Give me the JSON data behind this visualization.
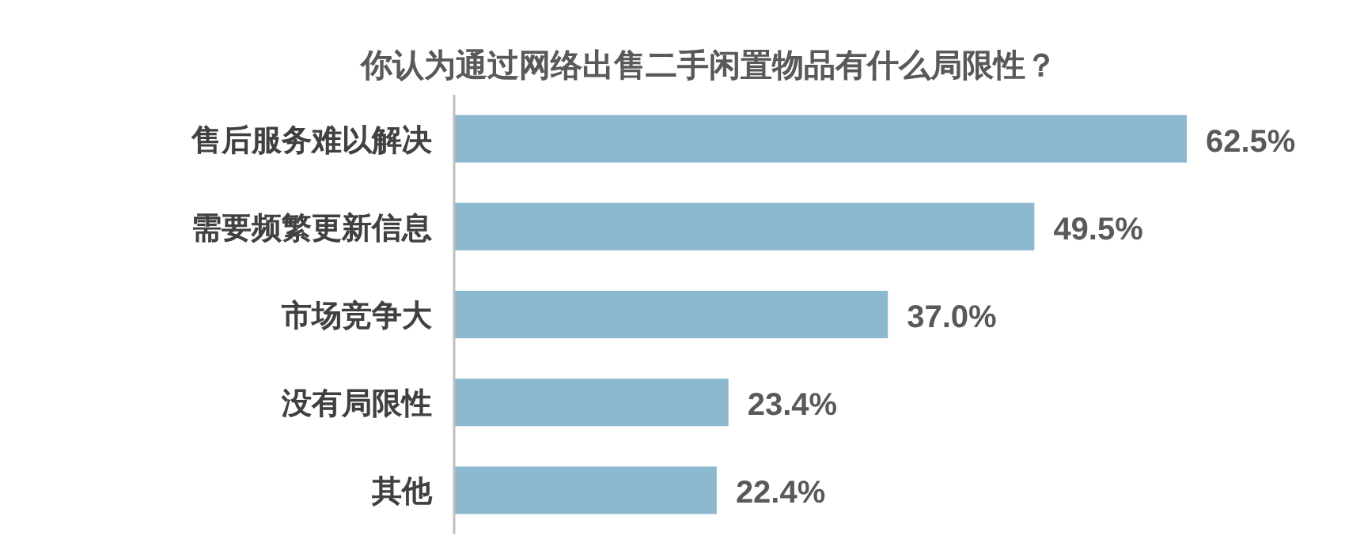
{
  "chart_data": {
    "type": "bar",
    "orientation": "horizontal",
    "title": "你认为通过网络出售二手闲置物品有什么局限性？",
    "categories": [
      "售后服务难以解决",
      "需要频繁更新信息",
      "市场竞争大",
      "没有局限性",
      "其他"
    ],
    "values": [
      62.5,
      49.5,
      37.0,
      23.4,
      22.4
    ],
    "value_labels": [
      "62.5%",
      "49.5%",
      "37.0%",
      "23.4%",
      "22.4%"
    ],
    "color": "#8cb8d0"
  }
}
